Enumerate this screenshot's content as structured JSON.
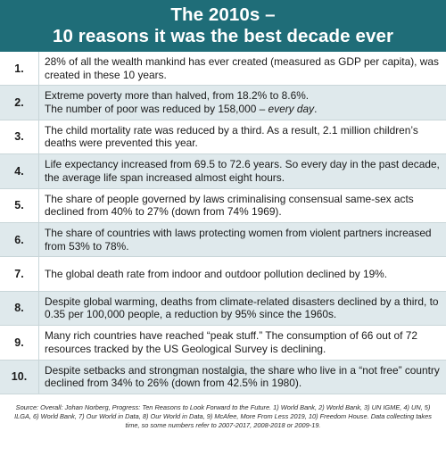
{
  "header": {
    "title_line1": "The 2010s –",
    "title_line2": "10 reasons it was the best decade ever"
  },
  "rows": [
    {
      "num": "1.",
      "text": "28% of all the wealth mankind has ever created (measured as GDP per capita), was created in these 10 years."
    },
    {
      "num": "2.",
      "text_line1": "Extreme poverty more than halved, from 18.2% to 8.6%.",
      "text_line2": "The number of poor was reduced by 158,000 – ",
      "text_line2_em": "every day",
      "text_line2_end": "."
    },
    {
      "num": "3.",
      "text": "The child mortality rate was reduced by a third. As a result, 2.1 million children’s deaths were prevented this year."
    },
    {
      "num": "4.",
      "text": "Life expectancy increased from 69.5 to 72.6 years. So every day in the past decade, the average life span increased almost eight hours."
    },
    {
      "num": "5.",
      "text": "The share of people governed by laws criminalising consensual same-sex acts declined from 40% to 27% (down from 74% 1969)."
    },
    {
      "num": "6.",
      "text": "The share of countries with laws protecting women from violent partners increased from 53% to 78%."
    },
    {
      "num": "7.",
      "text": "The global death rate from indoor and outdoor pollution declined by 19%."
    },
    {
      "num": "8.",
      "text": "Despite global warming, deaths from climate-related disasters declined by a third, to 0.35 per 100,000 people, a reduction by 95% since the 1960s."
    },
    {
      "num": "9.",
      "text": "Many rich countries have reached “peak stuff.” The consumption of 66 out of 72 resources tracked by the US Geological Survey is declining."
    },
    {
      "num": "10.",
      "text": "Despite setbacks and strongman nostalgia, the share who live in a “not free” country declined from 34% to 26% (down from 42.5% in 1980)."
    }
  ],
  "source": "Source: Overall: Johan Norberg, Progress: Ten Reasons to Look Forward to the Future. 1) World Bank, 2) World Bank, 3) UN IGME, 4) UN, 5) ILGA, 6) World Bank, 7) Our World in Data, 8) Our World in Data, 9) McAfee, More From Less 2019, 10) Freedom House. Data collecting takes time, so some numbers refer to 2007-2017, 2008-2018 or 2009-19."
}
